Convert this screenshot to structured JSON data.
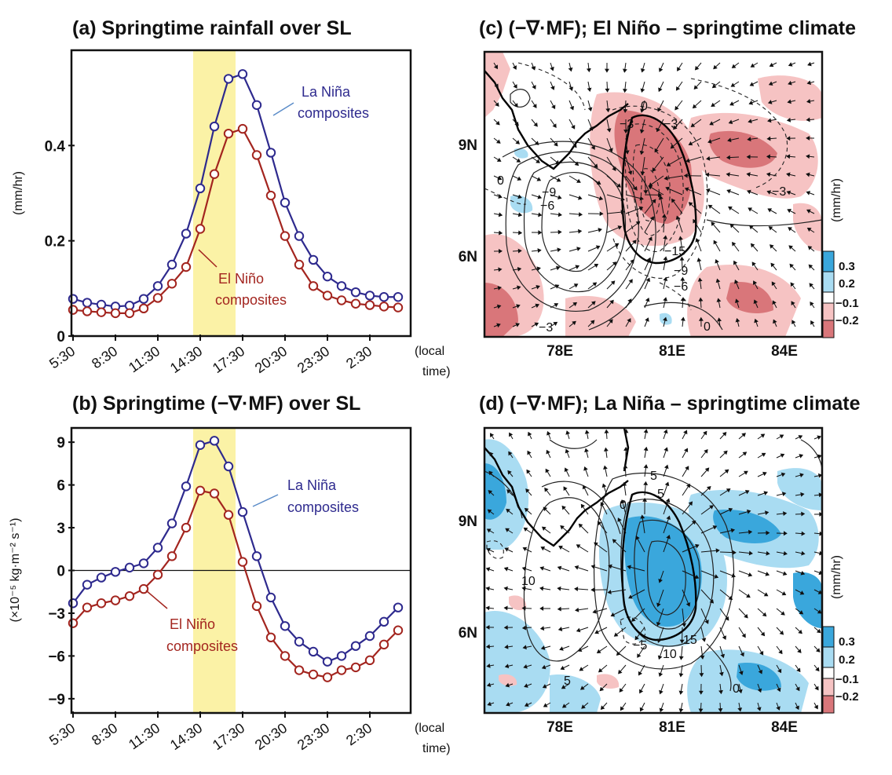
{
  "colors": {
    "la_nina": "#2e2a8e",
    "el_nino": "#a3251f",
    "highlight": "#fbf2a6",
    "neg_fill_light": "#f6c3c3",
    "neg_fill_dark": "#d9767a",
    "pos_fill_light": "#a9dcf2",
    "pos_fill_dark": "#3aa7dc"
  },
  "x_tick_labels": [
    "5:30",
    "8:30",
    "11:30",
    "14:30",
    "17:30",
    "20:30",
    "23:30",
    "2:30"
  ],
  "x_axis_label_line1": "(local",
  "x_axis_label_line2": "time)",
  "chart_data": [
    {
      "id": "a",
      "type": "line",
      "title": "(a) Springtime rainfall over SL",
      "ylabel": "(mm/hr)",
      "ylim": [
        0,
        0.6
      ],
      "yticks": [
        "0",
        "0.2",
        "0.4"
      ],
      "x": [
        "5:30",
        "6:30",
        "7:30",
        "8:30",
        "9:30",
        "10:30",
        "11:30",
        "12:30",
        "13:30",
        "14:30",
        "15:30",
        "16:30",
        "17:30",
        "18:30",
        "19:30",
        "20:30",
        "21:30",
        "22:30",
        "23:30",
        "0:30",
        "1:30",
        "2:30",
        "3:30",
        "4:30"
      ],
      "highlight_x": [
        "14:00",
        "17:00"
      ],
      "series": [
        {
          "name": "La Niña composites",
          "label_line1": "La Niña",
          "label_line2": "composites",
          "values": [
            0.078,
            0.07,
            0.066,
            0.062,
            0.064,
            0.078,
            0.105,
            0.15,
            0.215,
            0.31,
            0.44,
            0.54,
            0.55,
            0.485,
            0.385,
            0.28,
            0.21,
            0.16,
            0.125,
            0.105,
            0.092,
            0.085,
            0.082,
            0.082
          ]
        },
        {
          "name": "El Niño composites",
          "label_line1": "El Niño",
          "label_line2": "composites",
          "values": [
            0.055,
            0.052,
            0.05,
            0.048,
            0.048,
            0.058,
            0.08,
            0.11,
            0.145,
            0.225,
            0.34,
            0.425,
            0.435,
            0.38,
            0.295,
            0.21,
            0.15,
            0.105,
            0.085,
            0.075,
            0.068,
            0.065,
            0.062,
            0.06
          ]
        }
      ]
    },
    {
      "id": "b",
      "type": "line",
      "title": "(b) Springtime (−∇·MF) over SL",
      "ylabel": "(×10⁻⁵ kg·m⁻² s⁻¹)",
      "ylim": [
        -10,
        10
      ],
      "yticks": [
        "−9",
        "−6",
        "−3",
        "0",
        "3",
        "6",
        "9"
      ],
      "x": [
        "5:30",
        "6:30",
        "7:30",
        "8:30",
        "9:30",
        "10:30",
        "11:30",
        "12:30",
        "13:30",
        "14:30",
        "15:30",
        "16:30",
        "17:30",
        "18:30",
        "19:30",
        "20:30",
        "21:30",
        "22:30",
        "23:30",
        "0:30",
        "1:30",
        "2:30",
        "3:30",
        "4:30"
      ],
      "highlight_x": [
        "14:00",
        "17:00"
      ],
      "series": [
        {
          "name": "La Niña composites",
          "label_line1": "La Niña",
          "label_line2": "composites",
          "values": [
            -2.3,
            -1.0,
            -0.5,
            -0.1,
            0.2,
            0.5,
            1.6,
            3.3,
            5.9,
            8.8,
            9.1,
            7.3,
            4.1,
            1.0,
            -1.9,
            -3.9,
            -5.0,
            -5.7,
            -6.4,
            -6.0,
            -5.3,
            -4.6,
            -3.6,
            -2.6
          ]
        },
        {
          "name": "El Niño composites",
          "label_line1": "El Niño",
          "label_line2": "composites",
          "values": [
            -3.7,
            -2.6,
            -2.3,
            -2.1,
            -1.8,
            -1.3,
            -0.3,
            1.0,
            3.0,
            5.6,
            5.4,
            3.9,
            0.6,
            -2.5,
            -4.7,
            -6.0,
            -7.0,
            -7.3,
            -7.5,
            -7.0,
            -6.8,
            -6.3,
            -5.2,
            -4.2
          ]
        }
      ]
    },
    {
      "id": "c",
      "type": "heatmap",
      "title": "(c) (−∇·MF); El Niño – springtime climate",
      "lat_ticks": [
        "9N",
        "6N"
      ],
      "lon_ticks": [
        "78E",
        "81E",
        "84E"
      ],
      "colorbar_unit": "(mm/hr)",
      "colorbar_labels": [
        "0.3",
        "0.2",
        "−0.1",
        "−0.2"
      ],
      "contour_labels": [
        "0",
        "−3",
        "−3",
        "−3",
        "−6",
        "−9",
        "−15",
        "−9",
        "−6",
        "−3",
        "0",
        "0"
      ]
    },
    {
      "id": "d",
      "type": "heatmap",
      "title": "(d) (−∇·MF); La Niña – springtime climate",
      "lat_ticks": [
        "9N",
        "6N"
      ],
      "lon_ticks": [
        "78E",
        "81E",
        "84E"
      ],
      "colorbar_unit": "(mm/hr)",
      "colorbar_labels": [
        "0.3",
        "0.2",
        "−0.1",
        "−0.2"
      ],
      "contour_labels": [
        "5",
        "5",
        "0",
        "10",
        "−5",
        "10",
        "15",
        "5",
        "0"
      ]
    }
  ]
}
